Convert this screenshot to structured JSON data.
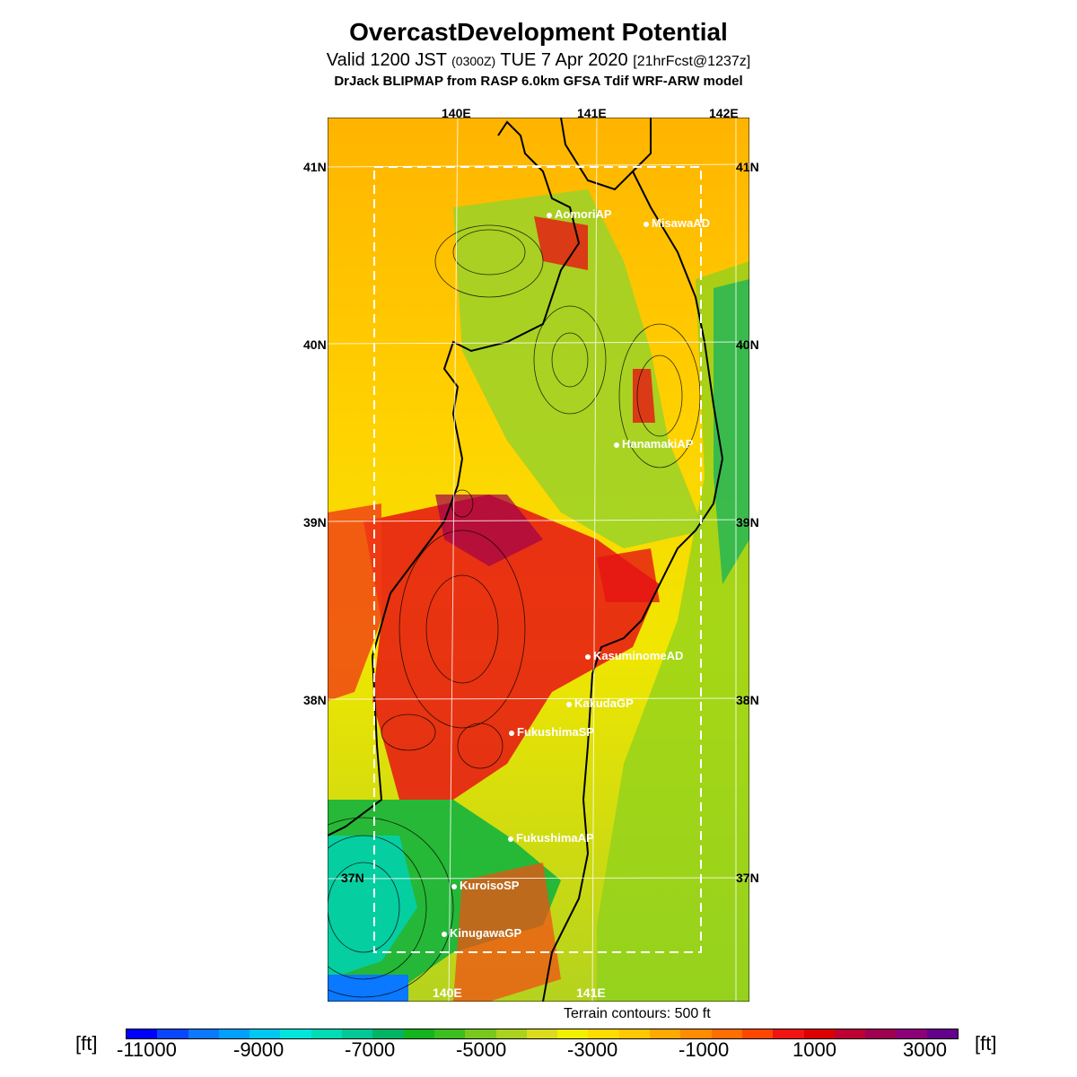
{
  "title": "OvercastDevelopment Potential",
  "subtitle_prefix": "Valid 1200 JST",
  "subtitle_zulu": "(0300Z)",
  "subtitle_date": "TUE 7 Apr 2020",
  "subtitle_fcst": "[21hrFcst@1237z]",
  "model_line": "DrJack BLIPMAP from RASP 6.0km GFSA Tdif WRF-ARW model",
  "lon_labels": [
    "140E",
    "141E",
    "142E"
  ],
  "lat_labels": [
    "41N",
    "40N",
    "39N",
    "38N",
    "37N"
  ],
  "stations": [
    "AomoriAP",
    "MisawaAD",
    "HanamakiAP",
    "KasuminomeAD",
    "KakudaGP",
    "FukushimaSP",
    "FukushimaAP",
    "KuroisoSP",
    "KinugawaGP"
  ],
  "terrain_note": "Terrain contours: 500 ft",
  "colorbar": {
    "unit": "[ft]",
    "ticks": [
      "-11000",
      "-9000",
      "-7000",
      "-5000",
      "-3000",
      "-1000",
      "1000",
      "3000"
    ],
    "colors": [
      "#0000ff",
      "#0a46ff",
      "#0a78ff",
      "#00a0ff",
      "#00c8f0",
      "#00e6dc",
      "#00dcb4",
      "#00c896",
      "#00b464",
      "#14b41e",
      "#3cbe1e",
      "#78c81e",
      "#aad21e",
      "#dcdc1e",
      "#f0f000",
      "#ffdc00",
      "#ffc800",
      "#ffaa00",
      "#ff8c00",
      "#ff6e00",
      "#ff4600",
      "#f01414",
      "#dc0000",
      "#be0032",
      "#a00050",
      "#8c0078",
      "#64008c"
    ]
  }
}
